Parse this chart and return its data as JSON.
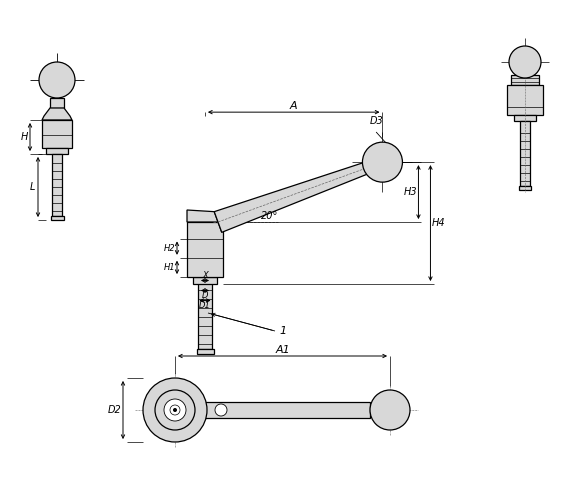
{
  "bg_color": "#ffffff",
  "line_color": "#000000",
  "fill_color": "#d8d8d8",
  "labels": {
    "A": "A",
    "A1": "A1",
    "D": "D",
    "D1": "D1",
    "D2": "D2",
    "D3": "D3",
    "H": "H",
    "H1": "H1",
    "H2": "H2",
    "H3": "H3",
    "H4": "H4",
    "L": "L",
    "X": "X",
    "angle": "20°",
    "ref1": "1"
  }
}
